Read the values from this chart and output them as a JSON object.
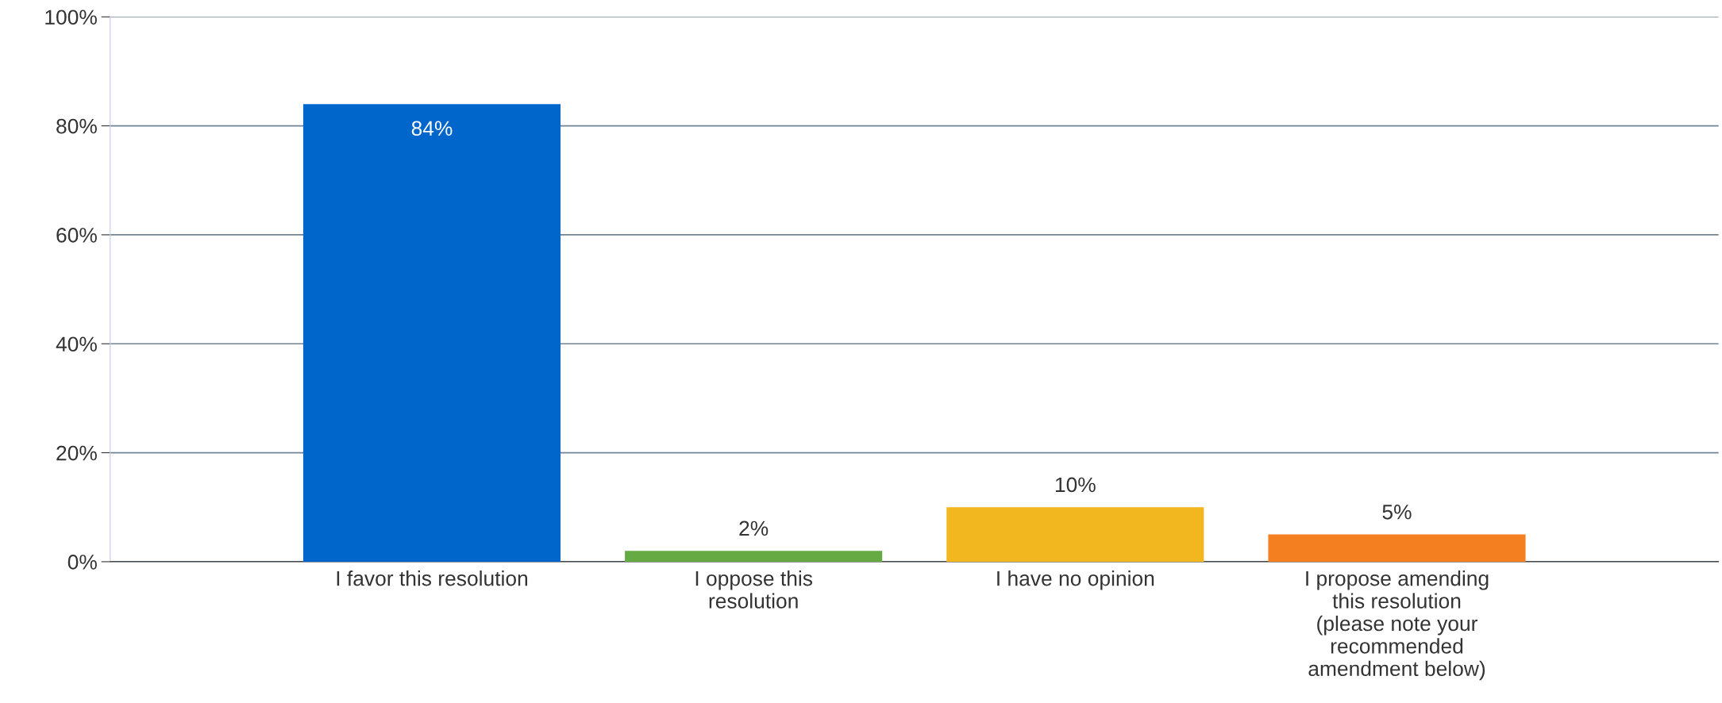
{
  "chart_data": {
    "type": "bar",
    "categories": [
      "I favor this resolution",
      "I oppose this\nresolution",
      "I have no opinion",
      "I propose amending\nthis resolution\n(please note your\nrecommended\namendment below)"
    ],
    "values": [
      84,
      2,
      10,
      5
    ],
    "colors": [
      "#0066cc",
      "#66aa44",
      "#f2b61f",
      "#f47f20"
    ],
    "value_labels": [
      "84%",
      "2%",
      "10%",
      "5%"
    ],
    "ylim": [
      0,
      100
    ],
    "yticks": [
      {
        "value": 0,
        "label": "0%"
      },
      {
        "value": 20,
        "label": "20%"
      },
      {
        "value": 40,
        "label": "40%"
      },
      {
        "value": 60,
        "label": "60%"
      },
      {
        "value": 80,
        "label": "80%"
      },
      {
        "value": 100,
        "label": "100%"
      }
    ],
    "grid": "y",
    "legend": false
  }
}
